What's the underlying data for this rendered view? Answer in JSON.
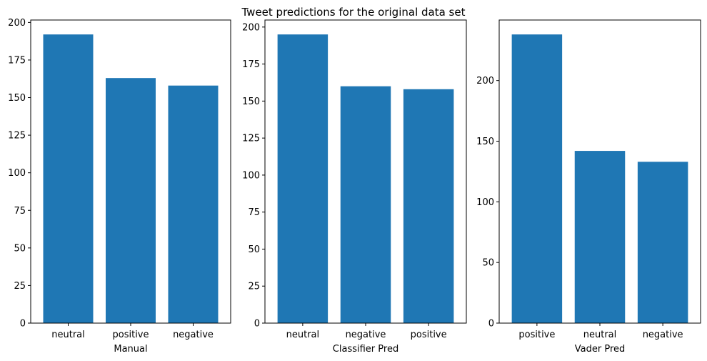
{
  "figure": {
    "title": "Tweet predictions for the original data set"
  },
  "colors": {
    "bar": "#1f77b4",
    "axis": "#000000"
  },
  "chart_data": [
    {
      "type": "bar",
      "categories": [
        "neutral",
        "positive",
        "negative"
      ],
      "values": [
        192,
        163,
        158
      ],
      "xlabel": "Manual",
      "ylabel": "",
      "ylim": [
        0,
        201.6
      ],
      "yticks": [
        0,
        25,
        50,
        75,
        100,
        125,
        150,
        175,
        200
      ],
      "grid": false
    },
    {
      "type": "bar",
      "categories": [
        "neutral",
        "negative",
        "positive"
      ],
      "values": [
        195,
        160,
        158
      ],
      "xlabel": "Classifier Pred",
      "ylabel": "",
      "ylim": [
        0,
        204.75
      ],
      "yticks": [
        0,
        25,
        50,
        75,
        100,
        125,
        150,
        175,
        200
      ],
      "grid": false
    },
    {
      "type": "bar",
      "categories": [
        "positive",
        "neutral",
        "negative"
      ],
      "values": [
        238,
        142,
        133
      ],
      "xlabel": "Vader Pred",
      "ylabel": "",
      "ylim": [
        0,
        249.9
      ],
      "yticks": [
        0,
        50,
        100,
        150,
        200
      ],
      "grid": false
    }
  ]
}
